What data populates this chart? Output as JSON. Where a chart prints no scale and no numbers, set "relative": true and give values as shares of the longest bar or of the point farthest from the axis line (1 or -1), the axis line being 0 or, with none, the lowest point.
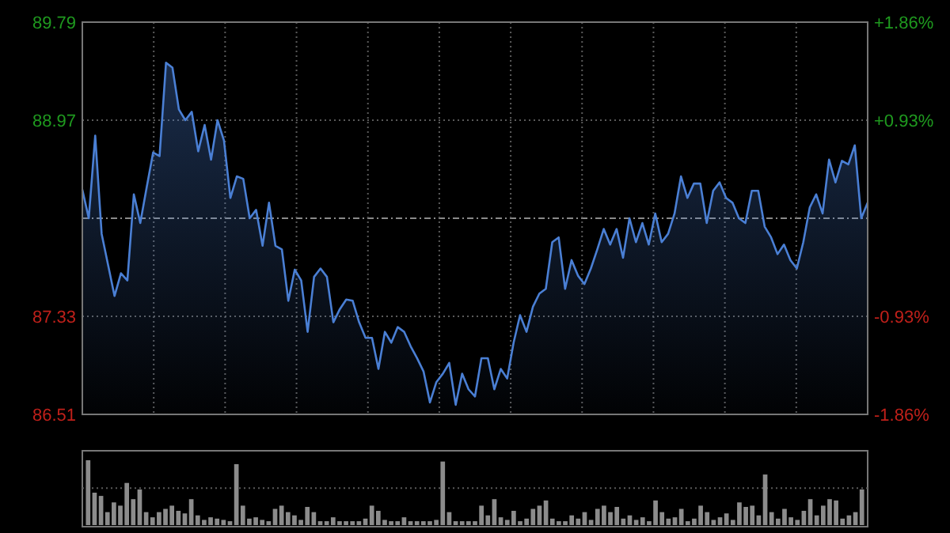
{
  "chart_data": [
    {
      "type": "area",
      "grid": true,
      "tick_labels": "y",
      "categories": [
        null,
        null,
        null,
        null,
        null,
        null,
        null,
        null,
        null,
        null,
        null,
        null,
        null,
        null,
        null,
        null,
        null,
        null,
        null,
        null,
        null,
        null,
        null,
        null,
        null,
        null,
        null,
        null,
        null,
        null,
        null,
        null,
        null,
        null,
        null,
        null,
        null,
        null,
        null,
        null,
        null,
        null,
        null,
        null,
        null,
        null,
        null,
        null,
        null,
        null,
        null,
        null,
        null,
        null,
        null,
        null,
        null,
        null,
        null,
        null,
        null,
        null,
        null,
        null,
        null,
        null,
        null,
        null,
        null,
        null,
        null,
        null,
        null,
        null,
        null,
        null,
        null,
        null,
        null,
        null,
        null,
        null,
        null,
        null,
        null,
        null,
        null,
        null,
        null,
        null,
        null,
        null,
        null,
        null,
        null,
        null,
        null,
        null,
        null,
        null,
        null,
        null,
        null,
        null,
        null,
        null,
        null,
        null,
        null,
        null,
        null,
        null,
        null,
        null,
        null,
        null,
        null,
        null,
        null,
        null,
        null,
        null,
        null
      ],
      "ylim": [
        86.51,
        89.79
      ],
      "yticks": [
        86.51,
        87.33,
        88.97,
        89.79
      ],
      "ref_lines": [
        {
          "axis": "y2",
          "value": 0,
          "color": "#8a8a8a",
          "line_style": "dashed"
        }
      ],
      "y2lim": [
        -1.86,
        1.86
      ],
      "y2ticks": [
        {
          "value": -1.86,
          "label": "-1.86%"
        },
        {
          "value": -0.93,
          "label": "-0.93%"
        },
        {
          "value": 0.93,
          "label": "+0.93%"
        },
        {
          "value": 1.86,
          "label": "+1.86%"
        }
      ],
      "series": [
        {
          "color": "#4a7fd4",
          "values": [
            88.39,
            88.15,
            88.84,
            88.02,
            87.76,
            87.5,
            87.69,
            87.63,
            88.35,
            88.11,
            88.41,
            88.7,
            88.67,
            89.45,
            89.41,
            89.06,
            88.97,
            89.04,
            88.71,
            88.93,
            88.64,
            88.97,
            88.8,
            88.32,
            88.5,
            88.48,
            88.15,
            88.22,
            87.92,
            88.28,
            87.92,
            87.89,
            87.46,
            87.72,
            87.63,
            87.2,
            87.66,
            87.73,
            87.66,
            87.28,
            87.39,
            87.47,
            87.46,
            87.28,
            87.15,
            87.15,
            86.89,
            87.2,
            87.11,
            87.24,
            87.2,
            87.08,
            86.98,
            86.87,
            86.61,
            86.78,
            86.85,
            86.94,
            86.59,
            86.85,
            86.72,
            86.66,
            86.98,
            86.98,
            86.72,
            86.89,
            86.81,
            87.11,
            87.34,
            87.2,
            87.41,
            87.52,
            87.56,
            87.95,
            87.99,
            87.56,
            87.8,
            87.67,
            87.6,
            87.73,
            87.89,
            88.06,
            87.93,
            88.06,
            87.82,
            88.15,
            87.95,
            88.11,
            87.93,
            88.19,
            87.95,
            88.02,
            88.19,
            88.5,
            88.32,
            88.44,
            88.44,
            88.11,
            88.38,
            88.45,
            88.32,
            88.28,
            88.15,
            88.11,
            88.38,
            88.38,
            88.08,
            87.99,
            87.85,
            87.93,
            87.8,
            87.73,
            87.95,
            88.24,
            88.35,
            88.19,
            88.64,
            88.45,
            88.63,
            88.6,
            88.76,
            88.15,
            88.28
          ]
        }
      ]
    },
    {
      "type": "bar",
      "relative": true,
      "tick_labels": false,
      "ref_lines": [
        {
          "axis": "y",
          "value": 0.57,
          "color": "#5a5a5a",
          "line_style": "dotted"
        }
      ],
      "categories": [
        null,
        null,
        null,
        null,
        null,
        null,
        null,
        null,
        null,
        null,
        null,
        null,
        null,
        null,
        null,
        null,
        null,
        null,
        null,
        null,
        null,
        null,
        null,
        null,
        null,
        null,
        null,
        null,
        null,
        null,
        null,
        null,
        null,
        null,
        null,
        null,
        null,
        null,
        null,
        null,
        null,
        null,
        null,
        null,
        null,
        null,
        null,
        null,
        null,
        null,
        null,
        null,
        null,
        null,
        null,
        null,
        null,
        null,
        null,
        null,
        null,
        null,
        null,
        null,
        null,
        null,
        null,
        null,
        null,
        null,
        null,
        null,
        null,
        null,
        null,
        null,
        null,
        null,
        null,
        null,
        null,
        null,
        null,
        null,
        null,
        null,
        null,
        null,
        null,
        null,
        null,
        null,
        null,
        null,
        null,
        null,
        null,
        null,
        null,
        null,
        null,
        null,
        null,
        null,
        null,
        null,
        null,
        null,
        null,
        null,
        null,
        null,
        null,
        null,
        null,
        null,
        null,
        null,
        null,
        null,
        null
      ],
      "color": "#8c8c8c",
      "values": [
        1.0,
        0.5,
        0.45,
        0.2,
        0.35,
        0.3,
        0.65,
        0.4,
        0.55,
        0.2,
        0.12,
        0.2,
        0.25,
        0.3,
        0.22,
        0.18,
        0.4,
        0.15,
        0.08,
        0.12,
        0.1,
        0.08,
        0.06,
        0.94,
        0.3,
        0.1,
        0.12,
        0.08,
        0.06,
        0.25,
        0.3,
        0.2,
        0.15,
        0.08,
        0.28,
        0.2,
        0.06,
        0.06,
        0.12,
        0.06,
        0.06,
        0.06,
        0.06,
        0.1,
        0.3,
        0.22,
        0.08,
        0.06,
        0.06,
        0.12,
        0.06,
        0.06,
        0.06,
        0.06,
        0.08,
        0.98,
        0.2,
        0.06,
        0.06,
        0.06,
        0.06,
        0.3,
        0.15,
        0.4,
        0.12,
        0.08,
        0.22,
        0.06,
        0.1,
        0.25,
        0.3,
        0.38,
        0.1,
        0.06,
        0.06,
        0.15,
        0.1,
        0.2,
        0.08,
        0.25,
        0.3,
        0.2,
        0.28,
        0.1,
        0.15,
        0.08,
        0.12,
        0.06,
        0.38,
        0.2,
        0.1,
        0.12,
        0.25,
        0.06,
        0.1,
        0.3,
        0.2,
        0.08,
        0.12,
        0.18,
        0.08,
        0.35,
        0.28,
        0.3,
        0.15,
        0.78,
        0.2,
        0.1,
        0.25,
        0.12,
        0.08,
        0.22,
        0.4,
        0.15,
        0.3,
        0.4,
        0.38,
        0.1,
        0.15,
        0.2,
        0.55
      ]
    }
  ]
}
